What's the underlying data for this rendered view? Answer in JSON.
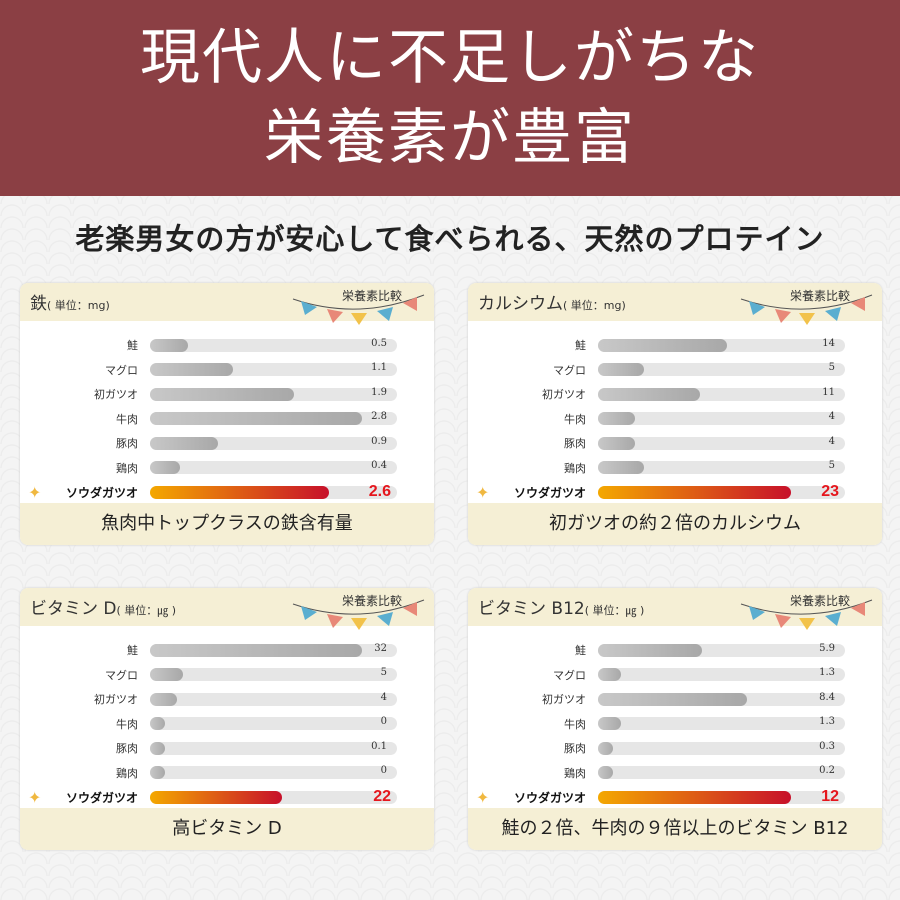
{
  "banner": {
    "line1": "現代人に不足しがちな",
    "line2": "栄養素が豊富"
  },
  "subtitle": "老楽男女の方が安心して食べられる、天然のプロテイン",
  "badge": "栄養素比較",
  "colors": {
    "banner": "#8b3f44",
    "highlight_start": "#f4a800",
    "highlight_end": "#c7102a",
    "highlight_value": "#e5161d"
  },
  "chart_data": [
    {
      "type": "bar",
      "title": "鉄",
      "unit": "( 単位：mg)",
      "categories": [
        "鮭",
        "マグロ",
        "初ガツオ",
        "牛肉",
        "豚肉",
        "鶏肉",
        "ソウダガツオ"
      ],
      "values": [
        0.5,
        1.1,
        1.9,
        2.8,
        0.9,
        0.4,
        2.6
      ],
      "value_labels": [
        "0.5",
        "1.1",
        "1.9",
        "2.8",
        "0.9",
        "0.4",
        "2.6"
      ],
      "highlight": "ソウダガツオ",
      "caption": "魚肉中トップクラスの鉄含有量"
    },
    {
      "type": "bar",
      "title": "カルシウム",
      "unit": "( 単位：mg)",
      "categories": [
        "鮭",
        "マグロ",
        "初ガツオ",
        "牛肉",
        "豚肉",
        "鶏肉",
        "ソウダガツオ"
      ],
      "values": [
        14,
        5,
        11,
        4,
        4,
        5,
        23
      ],
      "value_labels": [
        "14",
        "5",
        "11",
        "4",
        "4",
        "5",
        "23"
      ],
      "highlight": "ソウダガツオ",
      "caption": "初ガツオの約２倍のカルシウム"
    },
    {
      "type": "bar",
      "title": "ビタミン D",
      "unit": "( 単位：㎍ )",
      "categories": [
        "鮭",
        "マグロ",
        "初ガツオ",
        "牛肉",
        "豚肉",
        "鶏肉",
        "ソウダガツオ"
      ],
      "values": [
        32,
        5,
        4,
        0,
        0.1,
        0,
        22
      ],
      "value_labels": [
        "32",
        "5",
        "4",
        "0",
        "0.1",
        "0",
        "22"
      ],
      "highlight": "ソウダガツオ",
      "caption": "高ビタミン D"
    },
    {
      "type": "bar",
      "title": "ビタミン B12",
      "unit": "( 単位：㎍ )",
      "categories": [
        "鮭",
        "マグロ",
        "初ガツオ",
        "牛肉",
        "豚肉",
        "鶏肉",
        "ソウダガツオ"
      ],
      "values": [
        5.9,
        1.3,
        8.4,
        1.3,
        0.3,
        0.2,
        12
      ],
      "value_labels": [
        "5.9",
        "1.3",
        "8.4",
        "1.3",
        "0.3",
        "0.2",
        "12"
      ],
      "highlight": "ソウダガツオ",
      "caption": "鮭の２倍、牛肉の９倍以上のビタミン B12"
    }
  ]
}
